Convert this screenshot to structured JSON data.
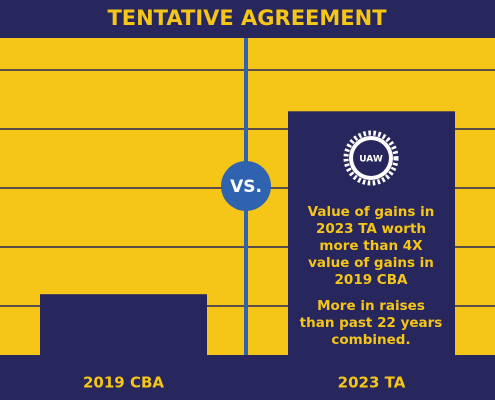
{
  "chart_data": {
    "type": "bar",
    "title": "TENTATIVE AGREEMENT",
    "categories": [
      "2019 CBA",
      "2023 TA"
    ],
    "values": [
      1.2,
      4.3
    ],
    "color": "#27275e",
    "ylim": [
      0,
      5.5
    ],
    "yticks": [
      1,
      2,
      3,
      4,
      5
    ],
    "grid": true,
    "divider_label": "VS.",
    "logo_text": "UAW",
    "annotations": [
      [
        "Value of gains in",
        "2023 TA worth",
        "more than 4X",
        "value of gains in",
        "2019 CBA"
      ],
      [
        "More in raises",
        "than past 22 years",
        "combined."
      ]
    ]
  }
}
